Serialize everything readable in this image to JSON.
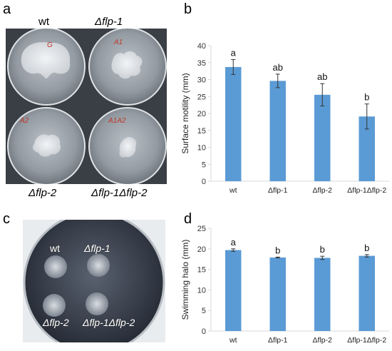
{
  "panels": {
    "a": {
      "letter": "a",
      "plate_labels": [
        "wt",
        "Δflp-1",
        "Δflp-2",
        "Δflp-1Δflp-2"
      ],
      "plate_marks": [
        "G",
        "A1",
        "A2",
        "A1A2"
      ]
    },
    "b": {
      "letter": "b"
    },
    "c": {
      "letter": "c",
      "spot_labels": [
        "wt",
        "Δflp-1",
        "Δflp-2",
        "Δflp-1Δflp-2"
      ]
    },
    "d": {
      "letter": "d"
    }
  },
  "colors": {
    "bar": "#5b9bd5",
    "bar_edge": "#4a86c0",
    "axis": "#d9d9d9",
    "plate_bg": "#2a2e35"
  },
  "chart_data": [
    {
      "panel": "b",
      "type": "bar",
      "categories": [
        "wt",
        "Δflp-1",
        "Δflp-2",
        "Δflp-1Δflp-2"
      ],
      "values": [
        33.7,
        29.6,
        25.5,
        19.1
      ],
      "errors": [
        2.2,
        2.0,
        3.3,
        3.7
      ],
      "annotations": [
        "a",
        "ab",
        "ab",
        "b"
      ],
      "ylabel": "Surface motility (mm)",
      "ylim": [
        0,
        40
      ],
      "yticks": [
        0,
        5,
        10,
        15,
        20,
        25,
        30,
        35,
        40
      ],
      "grid": false
    },
    {
      "panel": "d",
      "type": "bar",
      "categories": [
        "wt",
        "Δflp-1",
        "Δflp-2",
        "Δflp-1Δflp-2"
      ],
      "values": [
        19.7,
        17.9,
        17.8,
        18.3
      ],
      "errors": [
        0.3,
        0.1,
        0.4,
        0.3
      ],
      "annotations": [
        "a",
        "b",
        "b",
        "b"
      ],
      "ylabel": "Swimming halo (mm)",
      "ylim": [
        0,
        25
      ],
      "yticks": [
        0,
        5,
        10,
        15,
        20,
        25
      ],
      "grid": false
    }
  ]
}
